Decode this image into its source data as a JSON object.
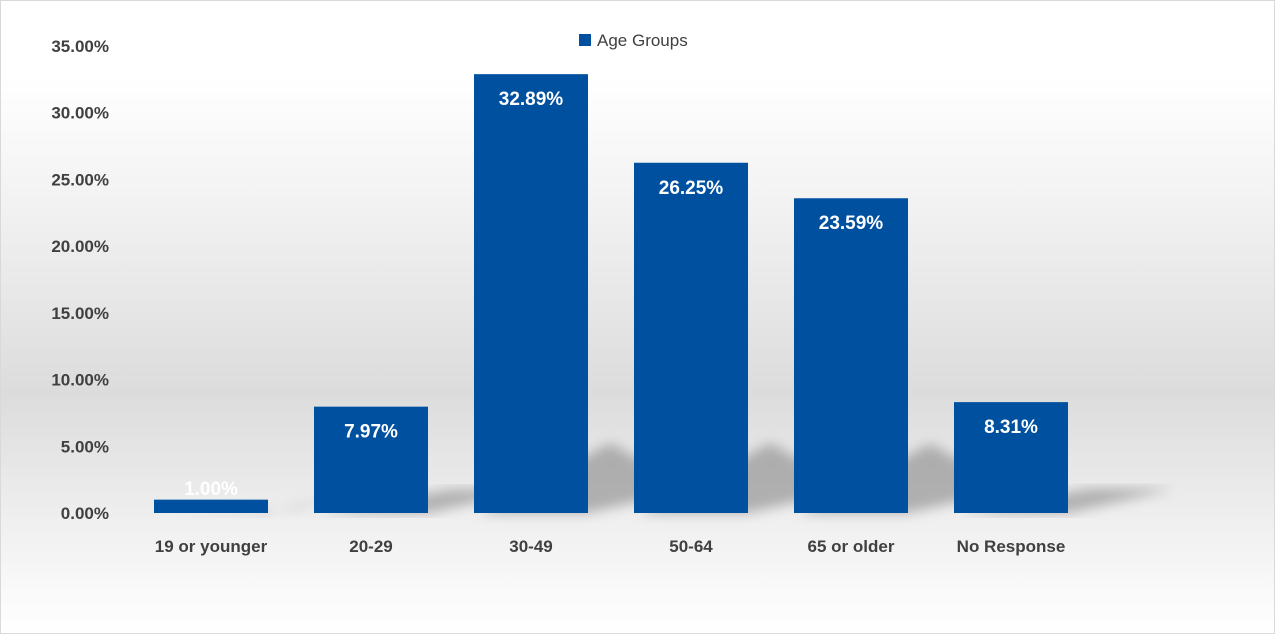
{
  "chart_data": {
    "type": "bar",
    "categories": [
      "19 or younger",
      "20-29",
      "30-49",
      "50-64",
      "65 or older",
      "No Response"
    ],
    "series": [
      {
        "name": "Age Groups",
        "values": [
          1.0,
          7.97,
          32.89,
          26.25,
          23.59,
          8.31
        ]
      }
    ],
    "data_labels": [
      "1.00%",
      "7.97%",
      "32.89%",
      "26.25%",
      "23.59%",
      "8.31%"
    ],
    "y_tick_values": [
      0,
      5,
      10,
      15,
      20,
      25,
      30,
      35
    ],
    "y_tick_labels": [
      "0.00%",
      "5.00%",
      "10.00%",
      "15.00%",
      "20.00%",
      "25.00%",
      "30.00%",
      "35.00%"
    ],
    "ylim": [
      0,
      35
    ],
    "title": "",
    "xlabel": "",
    "ylabel": "",
    "grid": false,
    "legend_position": "top-center",
    "bar_color": "#0050a0",
    "first_label_color": "#e6edf6"
  }
}
